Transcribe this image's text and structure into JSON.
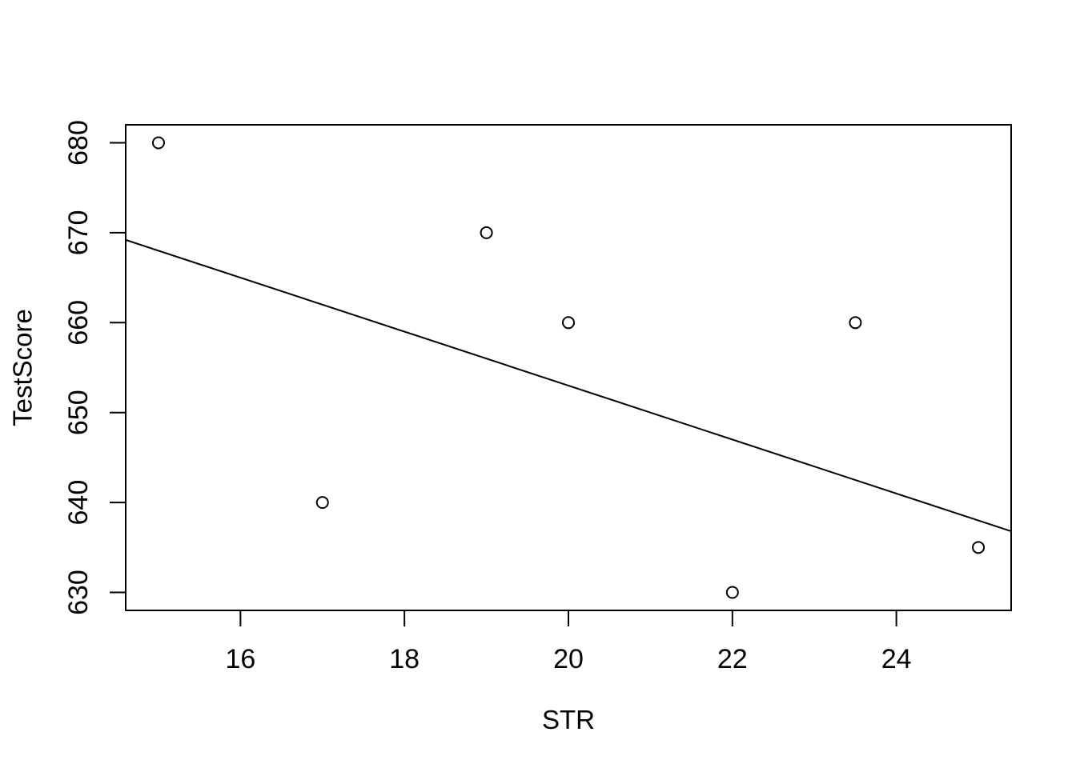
{
  "chart_data": {
    "type": "scatter",
    "title": "",
    "xlabel": "STR",
    "ylabel": "TestScore",
    "points": [
      {
        "x": 15,
        "y": 680
      },
      {
        "x": 17,
        "y": 640
      },
      {
        "x": 19,
        "y": 670
      },
      {
        "x": 20,
        "y": 660
      },
      {
        "x": 22,
        "y": 630
      },
      {
        "x": 23.5,
        "y": 660
      },
      {
        "x": 25,
        "y": 635
      }
    ],
    "x_ticks": [
      16,
      18,
      20,
      22,
      24
    ],
    "y_ticks": [
      630,
      640,
      650,
      660,
      670,
      680
    ],
    "xlim": [
      14.6,
      25.4
    ],
    "ylim": [
      628,
      682
    ],
    "regression_line": {
      "intercept": 713,
      "slope": -3
    },
    "marker": "open-circle",
    "grid": false,
    "legend": "none",
    "colors": {
      "foreground": "#000000",
      "background": "#ffffff"
    }
  }
}
